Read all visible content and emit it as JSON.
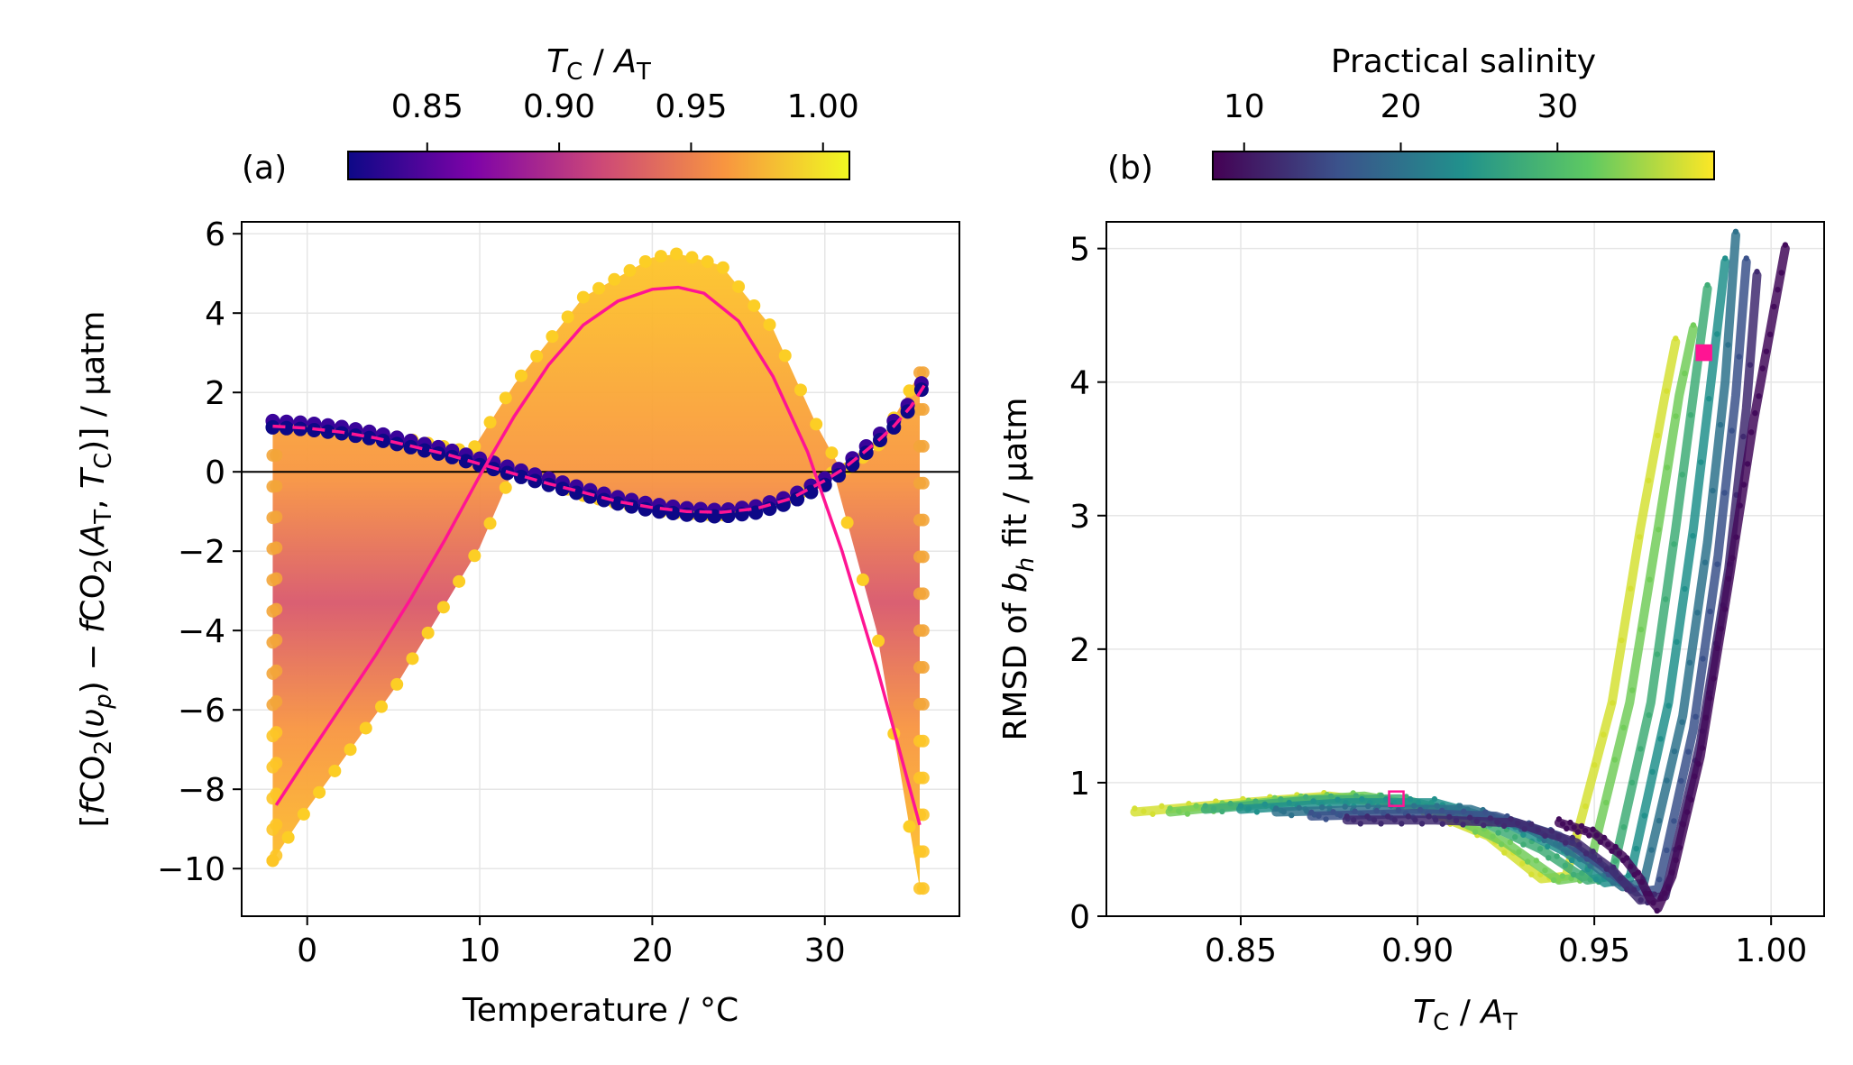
{
  "chart_data": [
    {
      "panel": "(a)",
      "type": "scatter",
      "xlabel": "Temperature / °C",
      "ylabel_parts": {
        "pre": "[",
        "f1": "f",
        "co2a": "CO",
        "sub2a": "2",
        "arg1open": "(",
        "nu": "υ",
        "sub_p": "p",
        "arg1close": ")",
        "minus": " − ",
        "f2": "f",
        "co2b": "CO",
        "sub2b": "2",
        "arg2open": "(",
        "A": "A",
        "subT": "T",
        "comma": ", ",
        "T": "T",
        "subC": "C",
        "arg2close": ")]",
        "unit": " / µatm"
      },
      "xlim": [
        -3.8,
        37.8
      ],
      "ylim": [
        -11.2,
        6.3
      ],
      "xticks": [
        0,
        10,
        20,
        30
      ],
      "xtick_labels": [
        "0",
        "10",
        "20",
        "30"
      ],
      "yticks": [
        6,
        4,
        2,
        0,
        -2,
        -4,
        -6,
        -8,
        -10
      ],
      "ytick_labels": [
        "6",
        "4",
        "2",
        "0",
        "−2",
        "−4",
        "−6",
        "−8",
        "−10"
      ],
      "grid": true,
      "hline_y": 0,
      "colorbar": {
        "colormap": "plasma",
        "label_parts": {
          "T": "T",
          "subC": "C",
          "slash": " / ",
          "A": "A",
          "subT": "T"
        },
        "range": [
          0.82,
          1.01
        ],
        "ticks": [
          0.85,
          0.9,
          0.95,
          1.0
        ],
        "tick_labels": [
          "0.85",
          "0.90",
          "0.95",
          "1.00"
        ]
      },
      "envelope_upper": {
        "x": [
          -2,
          0,
          5,
          9.5,
          12,
          16,
          20,
          21.5,
          24,
          27,
          29.5,
          31,
          33,
          35.5
        ],
        "y": [
          1.2,
          1.1,
          0.9,
          0.5,
          2.2,
          4.4,
          5.4,
          5.5,
          5.2,
          3.6,
          1.2,
          0,
          0.6,
          2.5
        ]
      },
      "envelope_lower": {
        "x": [
          -2,
          0,
          5,
          10,
          12,
          16,
          20,
          24,
          28,
          30.5,
          33,
          35.5
        ],
        "y": [
          -9.8,
          -8.5,
          -5.5,
          -1.9,
          0.1,
          -0.6,
          -1,
          -1.1,
          -0.7,
          0,
          -4,
          -10.5
        ]
      },
      "low_ratio_series": {
        "name": "",
        "x": [
          -2,
          0,
          2,
          4,
          6,
          8,
          10,
          12,
          14,
          16,
          18,
          20,
          22,
          24,
          26,
          28,
          30,
          31,
          32,
          33,
          34,
          35,
          35.8
        ],
        "y": [
          1.2,
          1.15,
          1.05,
          0.9,
          0.7,
          0.5,
          0.25,
          0.0,
          -0.25,
          -0.5,
          -0.72,
          -0.9,
          -1.0,
          -1.05,
          -0.95,
          -0.7,
          -0.25,
          0.05,
          0.4,
          0.8,
          1.2,
          1.7,
          2.3
        ]
      },
      "fit_curve_solid": {
        "name": "",
        "color": "#ff1493",
        "x": [
          -1.8,
          0,
          2,
          4,
          6,
          8,
          10,
          12,
          14,
          16,
          18,
          20,
          21.5,
          23,
          25,
          27,
          29,
          31,
          33,
          35.5
        ],
        "y": [
          -8.4,
          -7.2,
          -5.9,
          -4.6,
          -3.2,
          -1.7,
          -0.1,
          1.4,
          2.7,
          3.7,
          4.3,
          4.6,
          4.65,
          4.5,
          3.8,
          2.4,
          0.5,
          -2,
          -4.9,
          -8.9
        ]
      },
      "fit_curve_dashed": {
        "name": "",
        "color": "#ff1493",
        "x": [
          -2,
          0,
          2,
          4,
          6,
          8,
          10,
          12,
          14,
          16,
          18,
          20,
          22,
          24,
          26,
          28,
          30,
          31,
          32,
          33,
          34,
          35,
          35.8
        ],
        "y": [
          1.15,
          1.1,
          1.0,
          0.85,
          0.65,
          0.45,
          0.2,
          -0.05,
          -0.3,
          -0.52,
          -0.75,
          -0.9,
          -1.0,
          -1.02,
          -0.93,
          -0.68,
          -0.22,
          0.05,
          0.4,
          0.75,
          1.15,
          1.65,
          2.2
        ]
      }
    },
    {
      "panel": "(b)",
      "type": "scatter",
      "xlabel_parts": {
        "T": "T",
        "subC": "C",
        "slash": " / ",
        "A": "A",
        "subT": "T"
      },
      "ylabel_parts": {
        "pre": "RMSD of ",
        "b": "b",
        "sub_h": "h",
        "post": " fit / µatm"
      },
      "xlim": [
        0.812,
        1.015
      ],
      "ylim": [
        0,
        5.2
      ],
      "xticks": [
        0.85,
        0.9,
        0.95,
        1.0
      ],
      "xtick_labels": [
        "0.85",
        "0.90",
        "0.95",
        "1.00"
      ],
      "yticks": [
        0,
        1,
        2,
        3,
        4,
        5
      ],
      "ytick_labels": [
        "0",
        "1",
        "2",
        "3",
        "4",
        "5"
      ],
      "grid": true,
      "colorbar": {
        "colormap": "viridis",
        "label": "Practical salinity",
        "range": [
          8,
          40
        ],
        "ticks": [
          10,
          20,
          30
        ],
        "tick_labels": [
          "10",
          "20",
          "30"
        ]
      },
      "bands": [
        {
          "salinity": 38,
          "x": [
            0.82,
            0.85,
            0.875,
            0.9,
            0.92,
            0.935,
            0.942,
            0.955,
            0.963,
            0.97,
            0.973
          ],
          "y": [
            0.78,
            0.85,
            0.9,
            0.82,
            0.6,
            0.28,
            0.3,
            1.6,
            2.9,
            3.9,
            4.3
          ]
        },
        {
          "salinity": 33,
          "x": [
            0.83,
            0.86,
            0.885,
            0.905,
            0.925,
            0.94,
            0.948,
            0.96,
            0.968,
            0.974,
            0.978
          ],
          "y": [
            0.78,
            0.86,
            0.9,
            0.8,
            0.55,
            0.27,
            0.3,
            1.6,
            2.9,
            3.9,
            4.4
          ]
        },
        {
          "salinity": 28,
          "x": [
            0.84,
            0.87,
            0.895,
            0.915,
            0.935,
            0.948,
            0.955,
            0.966,
            0.973,
            0.978,
            0.982
          ],
          "y": [
            0.8,
            0.87,
            0.88,
            0.75,
            0.5,
            0.27,
            0.3,
            1.6,
            2.9,
            3.9,
            4.7
          ]
        },
        {
          "salinity": 24,
          "x": [
            0.85,
            0.88,
            0.905,
            0.925,
            0.942,
            0.953,
            0.96,
            0.971,
            0.978,
            0.983,
            0.987
          ],
          "y": [
            0.8,
            0.85,
            0.85,
            0.7,
            0.48,
            0.25,
            0.28,
            1.6,
            2.9,
            4.0,
            4.9
          ]
        },
        {
          "salinity": 20,
          "x": [
            0.86,
            0.89,
            0.915,
            0.932,
            0.948,
            0.958,
            0.964,
            0.975,
            0.982,
            0.987,
            0.99
          ],
          "y": [
            0.78,
            0.8,
            0.8,
            0.65,
            0.42,
            0.22,
            0.25,
            1.5,
            2.8,
            4.0,
            5.1
          ]
        },
        {
          "salinity": 16,
          "x": [
            0.87,
            0.9,
            0.922,
            0.94,
            0.952,
            0.962,
            0.968,
            0.978,
            0.985,
            0.99,
            0.993
          ],
          "y": [
            0.75,
            0.77,
            0.75,
            0.6,
            0.38,
            0.18,
            0.2,
            1.4,
            2.7,
            3.9,
            4.9
          ]
        },
        {
          "salinity": 12,
          "x": [
            0.88,
            0.905,
            0.928,
            0.945,
            0.955,
            0.963,
            0.97,
            0.98,
            0.988,
            0.993,
            0.996
          ],
          "y": [
            0.72,
            0.72,
            0.7,
            0.55,
            0.35,
            0.12,
            0.15,
            1.3,
            2.6,
            3.8,
            4.8
          ]
        },
        {
          "salinity": 9,
          "x": [
            0.94,
            0.95,
            0.958,
            0.963,
            0.966,
            0.968,
            0.972,
            0.98,
            0.988,
            0.995,
            1.004
          ],
          "y": [
            0.7,
            0.62,
            0.45,
            0.28,
            0.12,
            0.06,
            0.3,
            1.2,
            2.5,
            3.7,
            5.0
          ]
        }
      ],
      "markers": [
        {
          "name": "",
          "x": 0.894,
          "y": 0.88,
          "style": "hollow-square",
          "color": "#ff1493"
        },
        {
          "name": "",
          "x": 0.981,
          "y": 4.22,
          "style": "filled-square",
          "color": "#ff1493"
        }
      ]
    }
  ]
}
